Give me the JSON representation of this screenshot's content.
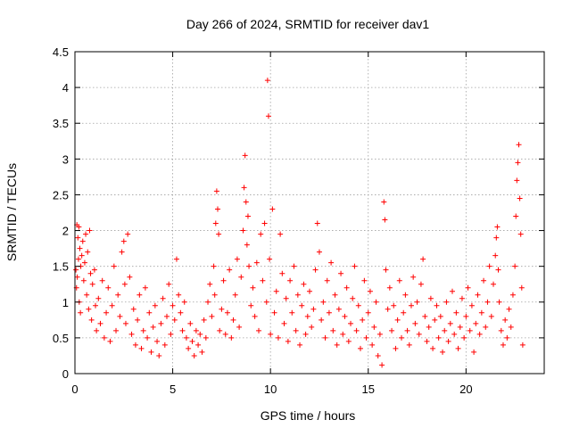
{
  "chart_data": {
    "type": "scatter",
    "title": "Day 266 of 2024, SRMTID for receiver dav1",
    "xlabel": "GPS time / hours",
    "ylabel": "SRMTID / TECUs",
    "xlim": [
      0,
      24
    ],
    "ylim": [
      0,
      4.5
    ],
    "x_ticks": [
      0,
      5,
      10,
      15,
      20
    ],
    "x_tick_labels": [
      "0",
      "5",
      "10",
      "15",
      "20"
    ],
    "y_ticks": [
      0,
      0.5,
      1,
      1.5,
      2,
      2.5,
      3,
      3.5,
      4,
      4.5
    ],
    "y_tick_labels": [
      "0",
      "0.5",
      "1",
      "1.5",
      "2",
      "2.5",
      "3",
      "3.5",
      "4",
      "4.5"
    ],
    "grid": true,
    "marker": "+",
    "color": "#ff0000",
    "series": [
      {
        "name": "dav1",
        "points": [
          [
            0.05,
            1.45
          ],
          [
            0.08,
            1.2
          ],
          [
            0.1,
            2.08
          ],
          [
            0.12,
            1.35
          ],
          [
            0.15,
            1.9
          ],
          [
            0.18,
            1.6
          ],
          [
            0.2,
            2.05
          ],
          [
            0.22,
            1.0
          ],
          [
            0.25,
            1.75
          ],
          [
            0.28,
            0.85
          ],
          [
            0.3,
            1.5
          ],
          [
            0.35,
            1.65
          ],
          [
            0.4,
            1.85
          ],
          [
            0.45,
            1.3
          ],
          [
            0.5,
            1.55
          ],
          [
            0.55,
            1.95
          ],
          [
            0.6,
            1.1
          ],
          [
            0.65,
            1.7
          ],
          [
            0.7,
            0.9
          ],
          [
            0.75,
            2.0
          ],
          [
            0.8,
            1.4
          ],
          [
            0.85,
            0.75
          ],
          [
            0.9,
            1.25
          ],
          [
            1.0,
            1.45
          ],
          [
            1.05,
            0.95
          ],
          [
            1.1,
            0.6
          ],
          [
            1.2,
            1.05
          ],
          [
            1.3,
            0.7
          ],
          [
            1.4,
            1.3
          ],
          [
            1.5,
            0.5
          ],
          [
            1.6,
            0.85
          ],
          [
            1.7,
            1.2
          ],
          [
            1.8,
            0.45
          ],
          [
            1.9,
            0.95
          ],
          [
            2.0,
            1.5
          ],
          [
            2.1,
            0.6
          ],
          [
            2.2,
            1.1
          ],
          [
            2.3,
            0.8
          ],
          [
            2.4,
            1.7
          ],
          [
            2.5,
            1.85
          ],
          [
            2.55,
            1.25
          ],
          [
            2.6,
            0.7
          ],
          [
            2.7,
            1.95
          ],
          [
            2.8,
            1.35
          ],
          [
            2.9,
            0.55
          ],
          [
            3.0,
            0.9
          ],
          [
            3.1,
            0.4
          ],
          [
            3.2,
            0.75
          ],
          [
            3.3,
            1.1
          ],
          [
            3.4,
            0.35
          ],
          [
            3.5,
            0.6
          ],
          [
            3.6,
            1.2
          ],
          [
            3.7,
            0.5
          ],
          [
            3.8,
            0.85
          ],
          [
            3.9,
            0.3
          ],
          [
            4.0,
            0.65
          ],
          [
            4.1,
            0.95
          ],
          [
            4.2,
            0.45
          ],
          [
            4.3,
            0.25
          ],
          [
            4.4,
            0.7
          ],
          [
            4.5,
            1.05
          ],
          [
            4.6,
            0.4
          ],
          [
            4.7,
            0.8
          ],
          [
            4.8,
            1.25
          ],
          [
            4.9,
            0.55
          ],
          [
            5.0,
            0.95
          ],
          [
            5.1,
            0.75
          ],
          [
            5.2,
            1.6
          ],
          [
            5.3,
            1.1
          ],
          [
            5.4,
            0.85
          ],
          [
            5.5,
            0.6
          ],
          [
            5.6,
            1.0
          ],
          [
            5.7,
            0.5
          ],
          [
            5.8,
            0.35
          ],
          [
            5.9,
            0.7
          ],
          [
            6.0,
            0.45
          ],
          [
            6.1,
            0.25
          ],
          [
            6.2,
            0.6
          ],
          [
            6.3,
            0.4
          ],
          [
            6.4,
            0.55
          ],
          [
            6.5,
            0.3
          ],
          [
            6.6,
            0.75
          ],
          [
            6.7,
            0.5
          ],
          [
            6.8,
            1.0
          ],
          [
            6.9,
            1.25
          ],
          [
            7.0,
            0.8
          ],
          [
            7.1,
            1.5
          ],
          [
            7.15,
            1.1
          ],
          [
            7.2,
            2.1
          ],
          [
            7.25,
            2.55
          ],
          [
            7.3,
            2.3
          ],
          [
            7.35,
            1.95
          ],
          [
            7.4,
            0.6
          ],
          [
            7.5,
            0.9
          ],
          [
            7.6,
            1.3
          ],
          [
            7.7,
            0.55
          ],
          [
            7.8,
            0.85
          ],
          [
            7.9,
            1.45
          ],
          [
            8.0,
            0.5
          ],
          [
            8.1,
            0.75
          ],
          [
            8.2,
            1.1
          ],
          [
            8.3,
            1.6
          ],
          [
            8.4,
            0.65
          ],
          [
            8.5,
            1.35
          ],
          [
            8.6,
            2.0
          ],
          [
            8.65,
            2.6
          ],
          [
            8.7,
            3.05
          ],
          [
            8.75,
            2.4
          ],
          [
            8.8,
            1.8
          ],
          [
            8.85,
            2.2
          ],
          [
            8.9,
            1.5
          ],
          [
            9.0,
            0.95
          ],
          [
            9.1,
            1.2
          ],
          [
            9.2,
            0.8
          ],
          [
            9.3,
            1.55
          ],
          [
            9.4,
            0.6
          ],
          [
            9.5,
            1.95
          ],
          [
            9.6,
            1.3
          ],
          [
            9.7,
            2.1
          ],
          [
            9.8,
            1.0
          ],
          [
            9.85,
            4.1
          ],
          [
            9.9,
            3.6
          ],
          [
            9.95,
            1.6
          ],
          [
            10.0,
            0.55
          ],
          [
            10.1,
            2.3
          ],
          [
            10.2,
            0.85
          ],
          [
            10.3,
            1.15
          ],
          [
            10.4,
            0.5
          ],
          [
            10.5,
            1.95
          ],
          [
            10.6,
            1.4
          ],
          [
            10.7,
            0.7
          ],
          [
            10.8,
            1.05
          ],
          [
            10.9,
            0.45
          ],
          [
            11.0,
            1.3
          ],
          [
            11.1,
            0.85
          ],
          [
            11.2,
            1.5
          ],
          [
            11.3,
            0.6
          ],
          [
            11.4,
            1.1
          ],
          [
            11.5,
            0.4
          ],
          [
            11.6,
            0.95
          ],
          [
            11.7,
            1.25
          ],
          [
            11.8,
            0.55
          ],
          [
            11.9,
            0.8
          ],
          [
            12.0,
            1.15
          ],
          [
            12.1,
            0.65
          ],
          [
            12.2,
            0.9
          ],
          [
            12.3,
            1.45
          ],
          [
            12.4,
            2.1
          ],
          [
            12.5,
            1.7
          ],
          [
            12.6,
            0.75
          ],
          [
            12.7,
            1.0
          ],
          [
            12.8,
            0.5
          ],
          [
            12.9,
            1.3
          ],
          [
            13.0,
            0.85
          ],
          [
            13.1,
            1.55
          ],
          [
            13.2,
            0.6
          ],
          [
            13.3,
            1.1
          ],
          [
            13.4,
            0.4
          ],
          [
            13.5,
            0.9
          ],
          [
            13.6,
            1.4
          ],
          [
            13.7,
            0.55
          ],
          [
            13.8,
            0.8
          ],
          [
            13.9,
            1.2
          ],
          [
            14.0,
            0.45
          ],
          [
            14.1,
            0.7
          ],
          [
            14.2,
            1.05
          ],
          [
            14.3,
            1.5
          ],
          [
            14.4,
            0.6
          ],
          [
            14.5,
            0.95
          ],
          [
            14.6,
            0.35
          ],
          [
            14.7,
            0.75
          ],
          [
            14.8,
            1.3
          ],
          [
            14.9,
            0.5
          ],
          [
            15.0,
            0.85
          ],
          [
            15.1,
            1.15
          ],
          [
            15.2,
            0.4
          ],
          [
            15.3,
            0.65
          ],
          [
            15.4,
            1.0
          ],
          [
            15.5,
            0.25
          ],
          [
            15.6,
            0.55
          ],
          [
            15.7,
            0.12
          ],
          [
            15.8,
            2.4
          ],
          [
            15.85,
            2.15
          ],
          [
            15.9,
            1.45
          ],
          [
            16.0,
            0.9
          ],
          [
            16.1,
            1.2
          ],
          [
            16.2,
            0.6
          ],
          [
            16.3,
            0.95
          ],
          [
            16.4,
            0.35
          ],
          [
            16.5,
            0.75
          ],
          [
            16.6,
            1.3
          ],
          [
            16.7,
            0.5
          ],
          [
            16.8,
            0.85
          ],
          [
            16.9,
            1.1
          ],
          [
            17.0,
            0.6
          ],
          [
            17.1,
            0.4
          ],
          [
            17.2,
            0.95
          ],
          [
            17.3,
            1.35
          ],
          [
            17.4,
            0.7
          ],
          [
            17.5,
            1.0
          ],
          [
            17.6,
            0.55
          ],
          [
            17.7,
            1.25
          ],
          [
            17.8,
            1.6
          ],
          [
            17.9,
            0.8
          ],
          [
            18.0,
            0.45
          ],
          [
            18.1,
            0.65
          ],
          [
            18.2,
            1.05
          ],
          [
            18.3,
            0.35
          ],
          [
            18.4,
            0.75
          ],
          [
            18.5,
            0.95
          ],
          [
            18.6,
            0.5
          ],
          [
            18.7,
            0.8
          ],
          [
            18.8,
            0.3
          ],
          [
            18.9,
            0.6
          ],
          [
            19.0,
            1.0
          ],
          [
            19.1,
            0.45
          ],
          [
            19.2,
            0.7
          ],
          [
            19.3,
            1.15
          ],
          [
            19.4,
            0.55
          ],
          [
            19.5,
            0.85
          ],
          [
            19.6,
            0.35
          ],
          [
            19.7,
            0.65
          ],
          [
            19.8,
            1.05
          ],
          [
            19.9,
            0.5
          ],
          [
            20.0,
            0.8
          ],
          [
            20.1,
            1.2
          ],
          [
            20.2,
            0.6
          ],
          [
            20.3,
            0.95
          ],
          [
            20.4,
            0.3
          ],
          [
            20.5,
            0.7
          ],
          [
            20.6,
            1.1
          ],
          [
            20.7,
            0.55
          ],
          [
            20.8,
            0.85
          ],
          [
            20.9,
            1.3
          ],
          [
            21.0,
            0.65
          ],
          [
            21.1,
            1.0
          ],
          [
            21.2,
            1.5
          ],
          [
            21.3,
            0.8
          ],
          [
            21.4,
            1.25
          ],
          [
            21.5,
            1.65
          ],
          [
            21.55,
            1.9
          ],
          [
            21.6,
            2.05
          ],
          [
            21.65,
            1.45
          ],
          [
            21.7,
            1.0
          ],
          [
            21.8,
            0.6
          ],
          [
            21.9,
            0.4
          ],
          [
            22.0,
            0.75
          ],
          [
            22.1,
            0.5
          ],
          [
            22.2,
            0.9
          ],
          [
            22.3,
            0.65
          ],
          [
            22.4,
            1.1
          ],
          [
            22.5,
            1.5
          ],
          [
            22.55,
            2.2
          ],
          [
            22.6,
            2.7
          ],
          [
            22.65,
            2.95
          ],
          [
            22.7,
            3.2
          ],
          [
            22.75,
            2.45
          ],
          [
            22.8,
            1.95
          ],
          [
            22.85,
            1.2
          ],
          [
            22.9,
            0.4
          ]
        ]
      }
    ]
  }
}
